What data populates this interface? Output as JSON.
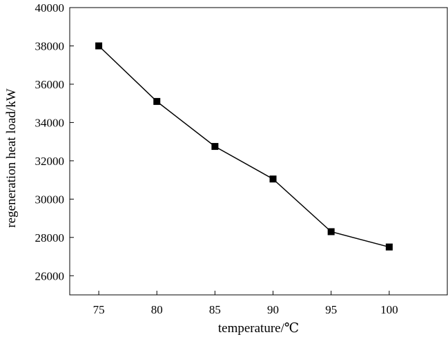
{
  "chart_data": {
    "type": "line",
    "xlabel": "temperature/℃",
    "ylabel": "regeneration heat load/kW",
    "x": [
      75,
      80,
      85,
      90,
      95,
      100
    ],
    "x_tick_labels": [
      "75",
      "80",
      "85",
      "90",
      "95",
      "100"
    ],
    "y_ticks": [
      26000,
      28000,
      30000,
      32000,
      34000,
      36000,
      38000,
      40000
    ],
    "y_tick_labels": [
      "26000",
      "28000",
      "30000",
      "32000",
      "34000",
      "36000",
      "38000",
      "40000"
    ],
    "xlim": [
      72.5,
      105
    ],
    "ylim": [
      25000,
      40000
    ],
    "series": [
      {
        "values": [
          38000,
          35100,
          32750,
          31050,
          28300,
          27500
        ],
        "marker": "square",
        "color": "#000000"
      }
    ],
    "grid": false,
    "legend": "none"
  }
}
